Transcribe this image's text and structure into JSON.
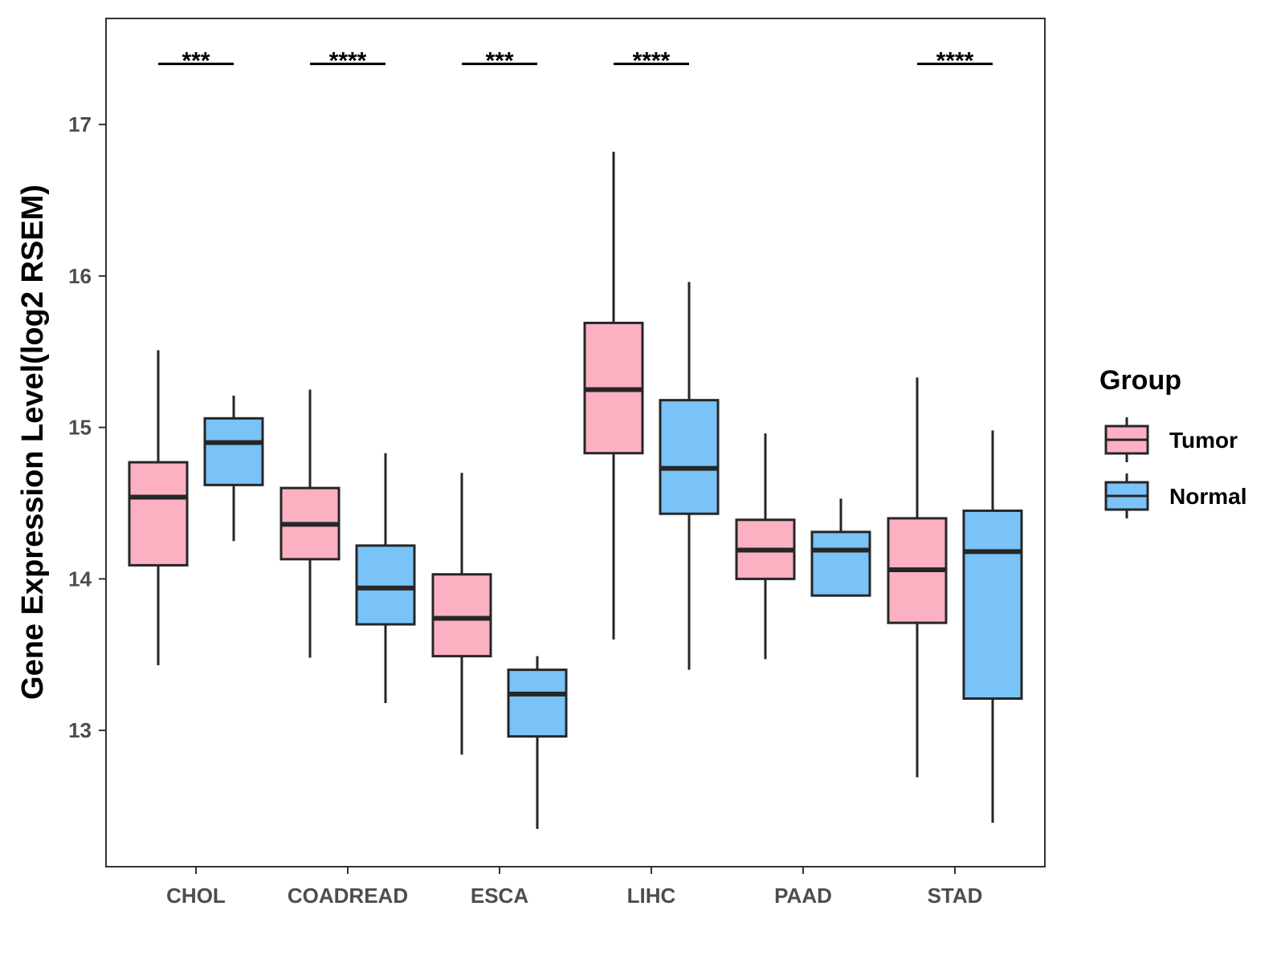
{
  "chart_data": {
    "type": "boxplot",
    "title": "",
    "xlabel": "",
    "ylabel": "Gene Expression Level(log2 RSEM)",
    "ylim": [
      12.1,
      17.7
    ],
    "yticks": [
      "13",
      "14",
      "15",
      "16",
      "17"
    ],
    "grid": false,
    "legend": {
      "title": "Group",
      "position": "right"
    },
    "categories": [
      "CHOL",
      "COADREAD",
      "ESCA",
      "LIHC",
      "PAAD",
      "STAD"
    ],
    "series": [
      {
        "name": "Tumor",
        "color": "#FCB1C3",
        "boxes": [
          {
            "min": 13.43,
            "q1": 14.09,
            "median": 14.54,
            "q3": 14.77,
            "max": 15.51
          },
          {
            "min": 13.48,
            "q1": 14.13,
            "median": 14.36,
            "q3": 14.6,
            "max": 15.25
          },
          {
            "min": 12.84,
            "q1": 13.49,
            "median": 13.74,
            "q3": 14.03,
            "max": 14.7
          },
          {
            "min": 13.6,
            "q1": 14.83,
            "median": 15.25,
            "q3": 15.69,
            "max": 16.82
          },
          {
            "min": 13.47,
            "q1": 14.0,
            "median": 14.19,
            "q3": 14.39,
            "max": 14.96
          },
          {
            "min": 12.69,
            "q1": 13.71,
            "median": 14.06,
            "q3": 14.4,
            "max": 15.33
          }
        ]
      },
      {
        "name": "Normal",
        "color": "#79C3F8",
        "boxes": [
          {
            "min": 14.25,
            "q1": 14.62,
            "median": 14.9,
            "q3": 15.06,
            "max": 15.21
          },
          {
            "min": 13.18,
            "q1": 13.7,
            "median": 13.94,
            "q3": 14.22,
            "max": 14.83
          },
          {
            "min": 12.35,
            "q1": 12.96,
            "median": 13.24,
            "q3": 13.4,
            "max": 13.49
          },
          {
            "min": 13.4,
            "q1": 14.43,
            "median": 14.73,
            "q3": 15.18,
            "max": 15.96
          },
          {
            "min": 13.89,
            "q1": 13.89,
            "median": 14.19,
            "q3": 14.31,
            "max": 14.53
          },
          {
            "min": 12.39,
            "q1": 13.21,
            "median": 14.18,
            "q3": 14.45,
            "max": 14.98
          }
        ]
      }
    ],
    "annotations": [
      {
        "category": "CHOL",
        "label": "***",
        "y": 17.4
      },
      {
        "category": "COADREAD",
        "label": "****",
        "y": 17.4
      },
      {
        "category": "ESCA",
        "label": "***",
        "y": 17.4
      },
      {
        "category": "LIHC",
        "label": "****",
        "y": 17.4
      },
      {
        "category": "STAD",
        "label": "****",
        "y": 17.4
      }
    ]
  }
}
